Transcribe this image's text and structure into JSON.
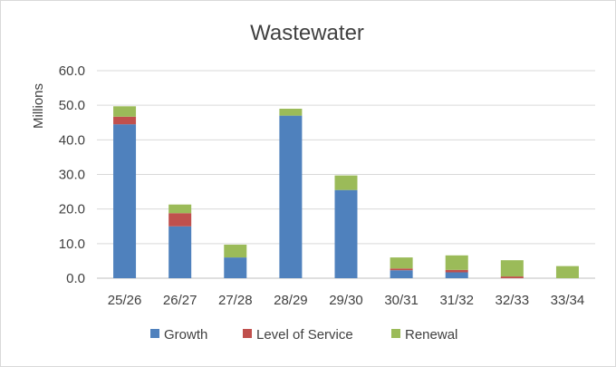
{
  "chart_data": {
    "type": "bar",
    "stacked": true,
    "title": "Wastewater",
    "xlabel": "",
    "ylabel": "Millions",
    "ylim": [
      0,
      60
    ],
    "yticks": [
      "0.0",
      "10.0",
      "20.0",
      "30.0",
      "40.0",
      "50.0",
      "60.0"
    ],
    "categories": [
      "25/26",
      "26/27",
      "27/28",
      "28/29",
      "29/30",
      "30/31",
      "31/32",
      "32/33",
      "33/34"
    ],
    "series": [
      {
        "name": "Growth",
        "color": "#4f81bd",
        "values": [
          44.5,
          15.0,
          6.0,
          47.0,
          25.5,
          2.3,
          1.7,
          0.0,
          0.0
        ]
      },
      {
        "name": "Level of Service",
        "color": "#c0504d",
        "values": [
          2.2,
          3.8,
          0.0,
          0.0,
          0.0,
          0.5,
          0.7,
          0.5,
          0.0
        ]
      },
      {
        "name": "Renewal",
        "color": "#9bbb59",
        "values": [
          3.0,
          2.5,
          3.7,
          2.0,
          4.2,
          3.2,
          4.2,
          4.7,
          3.5
        ]
      }
    ],
    "grid": true,
    "legend": "bottom"
  }
}
